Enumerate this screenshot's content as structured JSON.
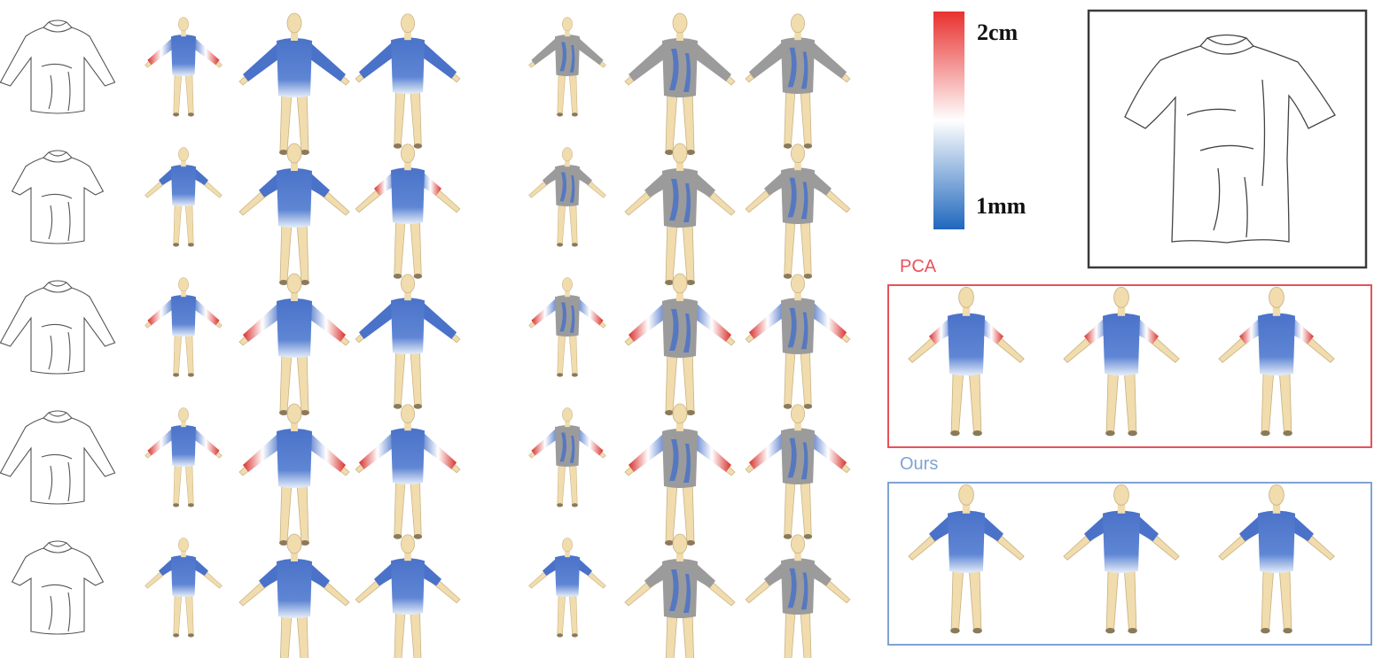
{
  "colorbar": {
    "max_label": "2cm",
    "min_label": "1mm",
    "colors": {
      "max": "#e8312e",
      "mid": "#ffffff",
      "min": "#2b6fc0"
    }
  },
  "panels": {
    "pca_label": "PCA",
    "ours_label": "Ours",
    "pca_color": "#e8515a",
    "ours_color": "#7fa3d3"
  },
  "rows": [
    {
      "shirt": "long-sleeve",
      "red": [
        1,
        0,
        0,
        0,
        0,
        0
      ],
      "gray": [
        0,
        0,
        0,
        1,
        1,
        1
      ]
    },
    {
      "shirt": "short-sleeve",
      "red": [
        0,
        0,
        1,
        0,
        0,
        0
      ],
      "gray": [
        0,
        0,
        0,
        1,
        1,
        1
      ]
    },
    {
      "shirt": "long-sleeve",
      "red": [
        1,
        1,
        0,
        1,
        1,
        1
      ],
      "gray": [
        0,
        0,
        0,
        1,
        1,
        1
      ]
    },
    {
      "shirt": "long-sleeve",
      "red": [
        1,
        1,
        1,
        1,
        1,
        1
      ],
      "gray": [
        0,
        0,
        0,
        1,
        1,
        1
      ]
    },
    {
      "shirt": "short-sleeve",
      "red": [
        0,
        0,
        0,
        0,
        0,
        0
      ],
      "gray": [
        0,
        0,
        0,
        0,
        1,
        1
      ]
    }
  ],
  "colors": {
    "shirt_blue": "#4a72c8",
    "shirt_gray": "#9b9b9b",
    "skin": "#f1dcae",
    "error_red": "#d8302d",
    "sketch": "#555555"
  }
}
